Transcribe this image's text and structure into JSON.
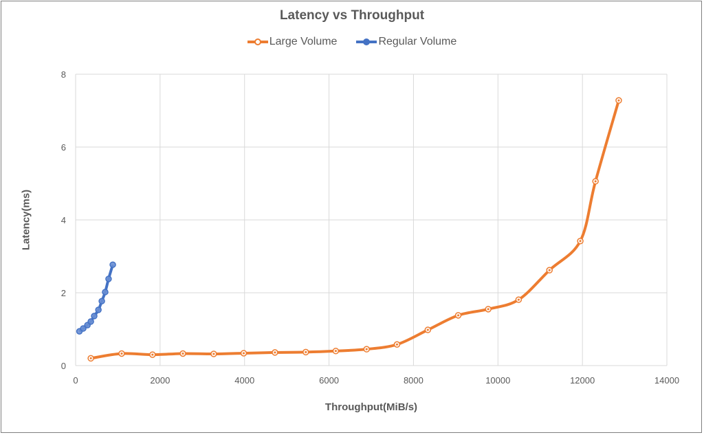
{
  "chart_data": {
    "type": "line",
    "title": "Latency vs Throughput",
    "xlabel": "Throughput(MiB/s)",
    "ylabel": "Latency(ms)",
    "xlim": [
      0,
      14000
    ],
    "ylim": [
      0,
      8
    ],
    "x_ticks": [
      0,
      2000,
      4000,
      6000,
      8000,
      10000,
      12000,
      14000
    ],
    "y_ticks": [
      0,
      2,
      4,
      6,
      8
    ],
    "grid": true,
    "legend_position": "top",
    "series": [
      {
        "name": "Large Volume",
        "color": "#ED7D31",
        "x": [
          360,
          1090,
          1820,
          2540,
          3270,
          3980,
          4720,
          5450,
          6160,
          6890,
          7610,
          8340,
          9060,
          9770,
          10490,
          11220,
          11950,
          12310,
          12860
        ],
        "y": [
          0.2,
          0.33,
          0.3,
          0.33,
          0.32,
          0.34,
          0.36,
          0.37,
          0.4,
          0.45,
          0.58,
          0.98,
          1.38,
          1.55,
          1.81,
          2.62,
          3.42,
          5.06,
          7.28
        ]
      },
      {
        "name": "Regular Volume",
        "color": "#4472C4",
        "x": [
          90,
          180,
          280,
          360,
          440,
          540,
          620,
          700,
          780,
          880
        ],
        "y": [
          0.94,
          1.02,
          1.11,
          1.21,
          1.36,
          1.53,
          1.77,
          2.02,
          2.38,
          2.77
        ]
      }
    ]
  },
  "labels": {
    "title": "Latency vs Throughput",
    "xlabel": "Throughput(MiB/s)",
    "ylabel": "Latency(ms)",
    "legend": [
      "Large Volume",
      "Regular Volume"
    ]
  }
}
